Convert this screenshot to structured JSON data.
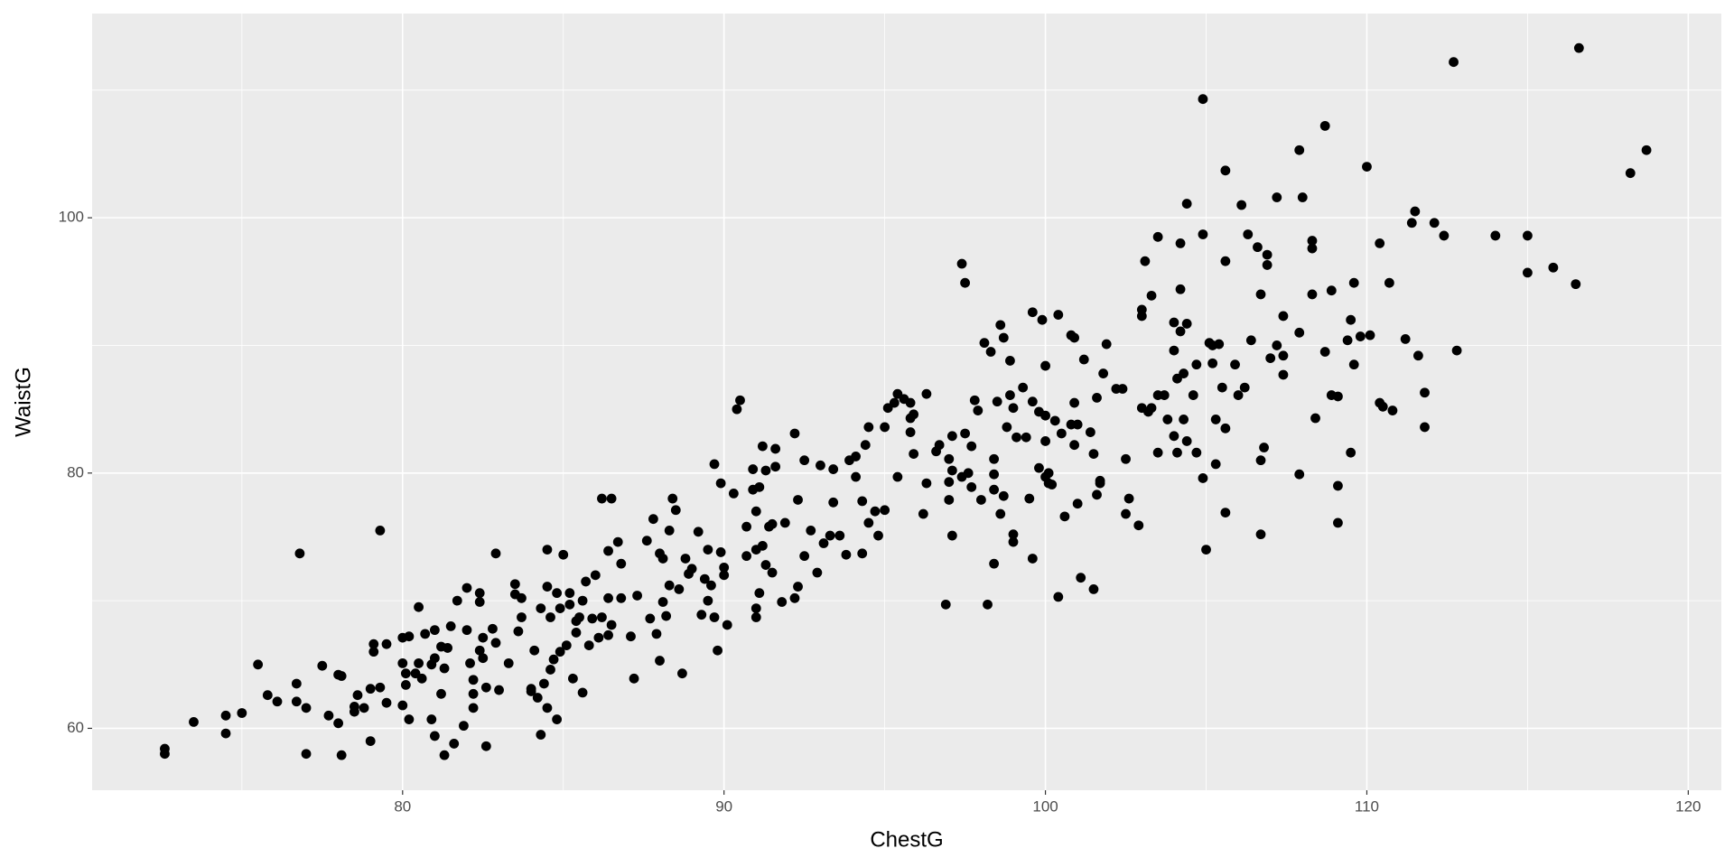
{
  "chart_data": {
    "type": "scatter",
    "x_label": "ChestG",
    "y_label": "WaistG",
    "color": "#000000",
    "xlim": [
      70.34,
      121.03
    ],
    "ylim": [
      55.15,
      116.0
    ],
    "xticks": [
      80,
      90,
      100,
      110,
      120
    ],
    "yticks": [
      60,
      80,
      100
    ],
    "xminor": [
      75,
      85,
      95,
      105,
      115
    ],
    "yminor": [
      70,
      90,
      110
    ],
    "grid": true,
    "x": [
      72.6,
      72.6,
      73.5,
      74.5,
      74.5,
      75.0,
      75.5,
      75.8,
      76.1,
      76.7,
      76.7,
      76.8,
      77.0,
      77.0,
      77.5,
      77.7,
      78.0,
      78.0,
      78.1,
      78.1,
      78.5,
      78.5,
      78.6,
      78.8,
      79.0,
      79.0,
      79.1,
      79.1,
      79.3,
      79.3,
      79.5,
      79.5,
      80.0,
      80.0,
      80.0,
      80.1,
      80.1,
      80.2,
      80.2,
      80.4,
      80.5,
      80.5,
      80.6,
      80.7,
      80.9,
      80.9,
      81.0,
      81.0,
      81.0,
      81.2,
      81.2,
      81.3,
      81.3,
      81.4,
      81.5,
      81.6,
      81.7,
      81.9,
      82.0,
      82.0,
      82.1,
      82.2,
      82.2,
      82.2,
      82.4,
      82.4,
      82.4,
      82.5,
      82.5,
      82.6,
      82.6,
      82.8,
      82.9,
      82.9,
      83.0,
      83.3,
      83.5,
      83.5,
      83.6,
      83.7,
      83.7,
      84.0,
      84.0,
      84.1,
      84.2,
      84.3,
      84.3,
      84.4,
      84.5,
      84.5,
      84.5,
      84.6,
      84.6,
      84.7,
      84.8,
      84.8,
      84.9,
      84.9,
      85.0,
      85.1,
      85.2,
      85.2,
      85.3,
      85.4,
      85.4,
      85.5,
      85.6,
      85.6,
      85.7,
      85.8,
      85.9,
      86.0,
      86.1,
      86.2,
      86.2,
      86.4,
      86.4,
      86.4,
      86.5,
      86.5,
      86.7,
      86.8,
      86.8,
      87.1,
      87.2,
      87.3,
      87.6,
      87.7,
      87.8,
      87.9,
      88.0,
      88.0,
      88.1,
      88.1,
      88.2,
      88.3,
      88.3,
      88.4,
      88.5,
      88.6,
      88.7,
      88.8,
      88.9,
      89.0,
      89.2,
      89.3,
      89.4,
      89.5,
      89.5,
      89.6,
      89.7,
      89.7,
      89.8,
      89.9,
      89.9,
      90.0,
      90.0,
      90.1,
      90.3,
      90.4,
      90.5,
      90.7,
      90.7,
      90.9,
      90.9,
      91.0,
      91.0,
      91.0,
      91.0,
      91.1,
      91.1,
      91.2,
      91.2,
      91.3,
      91.3,
      91.4,
      91.5,
      91.5,
      91.6,
      91.6,
      91.8,
      91.9,
      92.2,
      92.2,
      92.3,
      92.3,
      92.5,
      92.5,
      92.7,
      92.9,
      93.0,
      93.1,
      93.3,
      93.4,
      93.4,
      93.6,
      93.8,
      93.9,
      94.1,
      94.1,
      94.3,
      94.3,
      94.4,
      94.5,
      94.5,
      94.7,
      94.8,
      95.0,
      95.0,
      95.1,
      95.3,
      95.4,
      95.4,
      95.6,
      95.8,
      95.8,
      95.8,
      95.9,
      95.9,
      96.2,
      96.3,
      96.3,
      96.6,
      96.7,
      96.9,
      97.0,
      97.0,
      97.0,
      97.1,
      97.1,
      97.1,
      97.4,
      97.4,
      97.5,
      97.5,
      97.6,
      97.7,
      97.7,
      97.8,
      97.9,
      98.0,
      98.1,
      98.2,
      98.3,
      98.4,
      98.4,
      98.4,
      98.4,
      98.5,
      98.6,
      98.6,
      98.7,
      98.7,
      98.8,
      98.9,
      98.9,
      99.0,
      99.0,
      99.0,
      99.1,
      99.3,
      99.4,
      99.5,
      99.6,
      99.6,
      99.6,
      99.8,
      99.8,
      99.9,
      100.0,
      100.0,
      100.0,
      100.0,
      100.1,
      100.1,
      100.2,
      100.3,
      100.4,
      100.4,
      100.5,
      100.6,
      100.8,
      100.8,
      100.9,
      100.9,
      100.9,
      101.0,
      101.0,
      101.1,
      101.2,
      101.4,
      101.5,
      101.5,
      101.6,
      101.6,
      101.7,
      101.7,
      101.8,
      101.9,
      102.2,
      102.4,
      102.5,
      102.5,
      102.6,
      102.9,
      103.0,
      103.0,
      103.0,
      103.1,
      103.2,
      103.3,
      103.3,
      103.5,
      103.5,
      103.5,
      103.7,
      103.8,
      104.0,
      104.0,
      104.0,
      104.1,
      104.1,
      104.2,
      104.2,
      104.2,
      104.3,
      104.3,
      104.4,
      104.4,
      104.4,
      104.6,
      104.7,
      104.7,
      104.9,
      104.9,
      104.9,
      105.0,
      105.1,
      105.2,
      105.2,
      105.3,
      105.3,
      105.4,
      105.5,
      105.6,
      105.6,
      105.6,
      105.6,
      105.9,
      106.0,
      106.1,
      106.2,
      106.3,
      106.4,
      106.6,
      106.7,
      106.7,
      106.7,
      106.8,
      106.9,
      106.9,
      107.0,
      107.2,
      107.2,
      107.4,
      107.4,
      107.4,
      107.9,
      107.9,
      107.9,
      108.0,
      108.3,
      108.3,
      108.3,
      108.4,
      108.7,
      108.7,
      108.9,
      108.9,
      109.1,
      109.1,
      109.1,
      109.4,
      109.5,
      109.5,
      109.6,
      109.6,
      109.8,
      110.0,
      110.1,
      110.4,
      110.4,
      110.5,
      110.7,
      110.8,
      111.2,
      111.4,
      111.5,
      111.6,
      111.8,
      111.8,
      112.1,
      112.4,
      112.7,
      112.8,
      114.0,
      115.0,
      115.0,
      115.8,
      116.5,
      116.6,
      118.2,
      118.7
    ],
    "values": [
      58.4,
      58.0,
      60.5,
      61.0,
      59.6,
      61.2,
      65.0,
      62.6,
      62.1,
      63.5,
      62.1,
      73.7,
      61.6,
      58.0,
      64.9,
      61.0,
      64.2,
      60.4,
      57.9,
      64.1,
      61.3,
      61.7,
      62.6,
      61.6,
      63.1,
      59.0,
      66.6,
      66.0,
      75.5,
      63.2,
      66.6,
      62.0,
      67.1,
      65.1,
      61.8,
      64.3,
      63.4,
      60.7,
      67.2,
      64.3,
      65.1,
      69.5,
      63.9,
      67.4,
      65.0,
      60.7,
      67.7,
      59.4,
      65.5,
      62.7,
      66.4,
      57.9,
      64.7,
      66.3,
      68.0,
      58.8,
      70.0,
      60.2,
      67.7,
      71.0,
      65.1,
      63.8,
      62.7,
      61.6,
      69.9,
      70.6,
      66.1,
      67.1,
      65.5,
      58.6,
      63.2,
      67.8,
      73.7,
      66.7,
      63.0,
      65.1,
      71.3,
      70.5,
      67.6,
      68.7,
      70.2,
      62.9,
      63.1,
      66.1,
      62.4,
      59.5,
      69.4,
      63.5,
      74.0,
      61.6,
      71.1,
      68.7,
      64.6,
      65.4,
      60.7,
      70.6,
      66.0,
      69.4,
      73.6,
      66.5,
      69.7,
      70.6,
      63.9,
      67.5,
      68.4,
      68.7,
      70.0,
      62.8,
      71.5,
      66.5,
      68.6,
      72.0,
      67.1,
      68.7,
      78.0,
      67.3,
      70.2,
      73.9,
      78.0,
      68.1,
      74.6,
      72.9,
      70.2,
      67.2,
      63.9,
      70.4,
      74.7,
      68.6,
      76.4,
      67.4,
      73.7,
      65.3,
      73.3,
      69.9,
      68.8,
      71.2,
      75.5,
      78.0,
      77.1,
      70.9,
      64.3,
      73.3,
      72.1,
      72.5,
      75.4,
      68.9,
      71.7,
      74.0,
      70.0,
      71.2,
      80.7,
      68.7,
      66.1,
      73.8,
      79.2,
      72.6,
      72.0,
      68.1,
      78.4,
      85.0,
      85.7,
      73.5,
      75.8,
      78.7,
      80.3,
      77.0,
      74.0,
      69.4,
      68.7,
      70.6,
      78.9,
      82.1,
      74.3,
      80.2,
      72.8,
      75.8,
      72.2,
      76.0,
      81.9,
      80.5,
      69.9,
      76.1,
      70.2,
      83.1,
      71.1,
      77.9,
      81.0,
      73.5,
      75.5,
      72.2,
      80.6,
      74.5,
      75.1,
      80.3,
      77.7,
      75.1,
      73.6,
      81.0,
      81.3,
      79.7,
      77.8,
      73.7,
      82.2,
      76.1,
      83.6,
      77.0,
      75.1,
      77.1,
      83.6,
      85.1,
      85.5,
      86.2,
      79.7,
      85.8,
      85.5,
      83.2,
      84.3,
      84.6,
      81.5,
      76.8,
      79.2,
      86.2,
      81.7,
      82.2,
      69.7,
      79.3,
      81.1,
      77.9,
      80.2,
      82.9,
      75.1,
      96.4,
      79.7,
      83.1,
      94.9,
      80.0,
      78.9,
      82.1,
      85.7,
      84.9,
      77.9,
      90.2,
      69.7,
      89.5,
      79.9,
      72.9,
      78.7,
      81.1,
      85.6,
      76.8,
      91.6,
      78.2,
      90.6,
      83.6,
      88.8,
      86.1,
      85.1,
      75.2,
      74.6,
      82.8,
      86.7,
      82.8,
      78.0,
      73.3,
      92.6,
      85.6,
      80.4,
      84.8,
      92.0,
      82.5,
      88.4,
      84.5,
      79.7,
      80.0,
      79.2,
      79.1,
      84.1,
      92.4,
      70.3,
      83.1,
      76.6,
      83.8,
      90.8,
      90.6,
      85.5,
      82.2,
      83.8,
      77.6,
      71.8,
      88.9,
      83.2,
      81.5,
      70.9,
      78.3,
      85.9,
      79.4,
      79.2,
      87.8,
      90.1,
      86.6,
      86.6,
      81.1,
      76.8,
      78.0,
      75.9,
      85.1,
      92.8,
      92.3,
      96.6,
      84.8,
      93.9,
      85.1,
      86.1,
      81.6,
      98.5,
      86.1,
      84.2,
      91.8,
      89.6,
      82.9,
      81.6,
      87.4,
      98.0,
      94.4,
      91.1,
      87.8,
      84.2,
      91.7,
      101.1,
      82.5,
      86.1,
      81.6,
      88.5,
      109.3,
      98.7,
      79.6,
      74.0,
      90.2,
      90.0,
      88.6,
      84.2,
      80.7,
      90.1,
      86.7,
      103.7,
      96.6,
      83.5,
      76.9,
      88.5,
      86.1,
      101.0,
      86.7,
      98.7,
      90.4,
      97.7,
      81.0,
      94.0,
      75.2,
      82.0,
      96.3,
      97.1,
      89.0,
      90.0,
      101.6,
      87.7,
      89.2,
      92.3,
      91.0,
      79.9,
      105.3,
      101.6,
      94.0,
      98.2,
      97.6,
      84.3,
      89.5,
      107.2,
      94.3,
      86.1,
      86.0,
      79.0,
      76.1,
      90.4,
      92.0,
      81.6,
      88.5,
      94.9,
      90.7,
      104.0,
      90.8,
      98.0,
      85.5,
      85.2,
      94.9,
      84.9,
      90.5,
      99.6,
      100.5,
      89.2,
      86.3,
      83.6,
      99.6,
      98.6,
      112.2,
      89.6,
      98.6,
      98.6,
      95.7,
      96.1,
      94.8,
      113.3,
      103.5,
      105.3
    ]
  }
}
